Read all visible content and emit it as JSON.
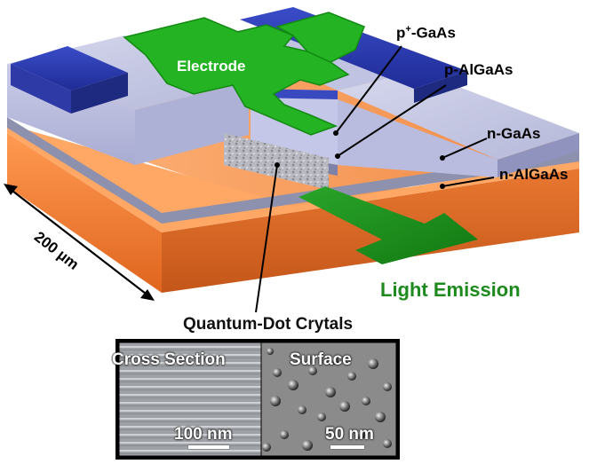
{
  "labels": {
    "electrode": "Electrode",
    "p_plus_gaas_base": "p",
    "p_plus_gaas_sup": "+",
    "p_plus_gaas_rest": "-GaAs",
    "p_algaas": "p-AlGaAs",
    "n_gaas": "n-GaAs",
    "n_algaas": "n-AlGaAs",
    "light_emission": "Light Emission",
    "dimension": "200 µm",
    "quantum_dots": "Quantum-Dot Crytals"
  },
  "micrographs": {
    "cross_section": {
      "title": "Cross Section",
      "scale": "100 nm"
    },
    "surface": {
      "title": "Surface",
      "scale": "50 nm"
    }
  },
  "colors": {
    "electrode": "#22b022",
    "n_algaas": "#f07a2a",
    "n_gaas": "#9a9ec2",
    "p_algaas": "#c8cbe6",
    "p_plus_gaas": "#2f3fb8",
    "light_arrow": "#1f8f1f",
    "light_text": "#1e8a1e"
  }
}
